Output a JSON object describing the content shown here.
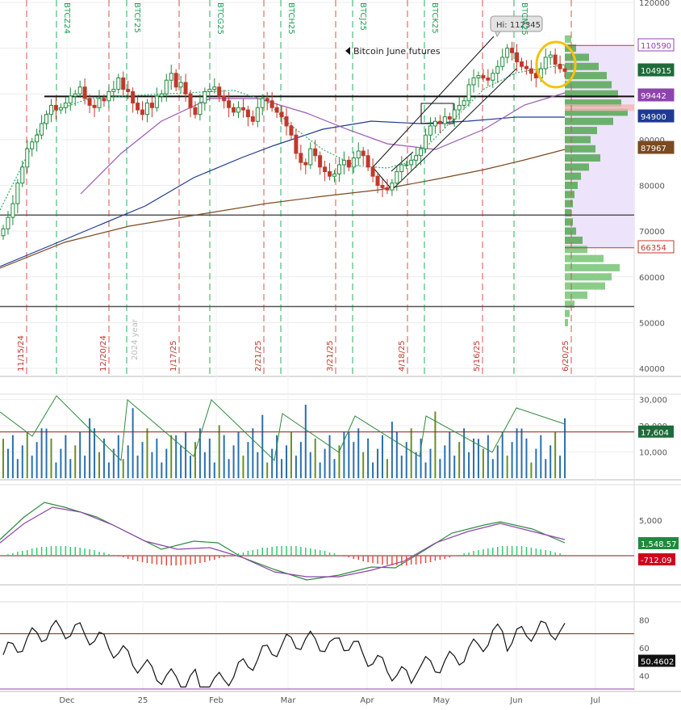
{
  "chart_data": [
    {
      "type": "candlestick",
      "title": "",
      "annotation": "Bitcoin June futures",
      "high_label": "Hi: 112345",
      "ylim": [
        40000,
        120000
      ],
      "y_ticks": [
        "40000",
        "50000",
        "60000",
        "70000",
        "80000",
        "90000",
        "100000",
        "110000",
        "120000"
      ],
      "x_ticks": [
        "Dec",
        "25",
        "Feb",
        "Mar",
        "Apr",
        "May",
        "Jun",
        "Jul"
      ],
      "expiry_dates": [
        "11/15/24",
        "12/20/24",
        "1/17/25",
        "2/21/25",
        "3/21/25",
        "4/18/25",
        "5/16/25",
        "6/20/25"
      ],
      "contract_labels": [
        "BTCZ24",
        "BTCF25",
        "BTCG25",
        "BTCH25",
        "BTCJ25",
        "BTCK25",
        "BTCM25"
      ],
      "year_label": "2024 year",
      "price_tags": [
        {
          "value": "110590",
          "color": "#8e44ad",
          "bg": "#ffffff",
          "fg": "#8e44ad"
        },
        {
          "value": "104915",
          "color": "#1d6b3a",
          "bg": "#1d6b3a",
          "fg": "#ffffff"
        },
        {
          "value": "99442",
          "color": "#8e44ad",
          "bg": "#8e44ad",
          "fg": "#ffffff"
        },
        {
          "value": "94900",
          "color": "#1f3a93",
          "bg": "#1f3a93",
          "fg": "#ffffff"
        },
        {
          "value": "87967",
          "color": "#7a4a20",
          "bg": "#7a4a20",
          "fg": "#ffffff"
        },
        {
          "value": "66354",
          "color": "#c0392b",
          "bg": "#ffffff",
          "fg": "#c0392b"
        }
      ],
      "horizontal_levels": [
        99442,
        73500,
        53500
      ],
      "close_prices": [
        70500,
        73000,
        76000,
        80500,
        84000,
        88000,
        89500,
        91000,
        93500,
        95500,
        97500,
        96500,
        97000,
        98000,
        99500,
        100000,
        101500,
        99000,
        97500,
        97000,
        99000,
        98500,
        100500,
        101000,
        103500,
        101000,
        100500,
        98000,
        96500,
        95500,
        98000,
        97000,
        99500,
        100000,
        103000,
        104500,
        101500,
        102500,
        100000,
        97000,
        95500,
        98000,
        100500,
        101000,
        101500,
        99500,
        98500,
        97000,
        96000,
        97000,
        96500,
        95000,
        94000,
        97000,
        99000,
        98500,
        97000,
        96000,
        95000,
        93000,
        91000,
        87000,
        85000,
        84500,
        88000,
        86500,
        84000,
        83000,
        82000,
        82500,
        84500,
        85500,
        84000,
        86000,
        87500,
        86500,
        84000,
        82000,
        80000,
        79500,
        79000,
        80500,
        83000,
        84500,
        84500,
        85500,
        86500,
        88000,
        91000,
        93000,
        94000,
        93500,
        95000,
        94500,
        96500,
        97500,
        98500,
        102000,
        103500,
        104000,
        103500,
        103000,
        104500,
        106000,
        108000,
        110000,
        109000,
        107000,
        106000,
        105500,
        104500,
        103500,
        105500,
        108000,
        108500,
        106500,
        105500,
        104915
      ],
      "volume_scale_max": 32000,
      "volume_ticks": [
        "10,000",
        "20,000",
        "30,000"
      ],
      "volume_value": "17,604",
      "macd_tick": "5,000",
      "macd_value": "1,548.57",
      "macd_hist_value": "-712.09",
      "rsi_ticks": [
        "40",
        "60",
        "80"
      ],
      "rsi_value": "50.4602"
    }
  ]
}
